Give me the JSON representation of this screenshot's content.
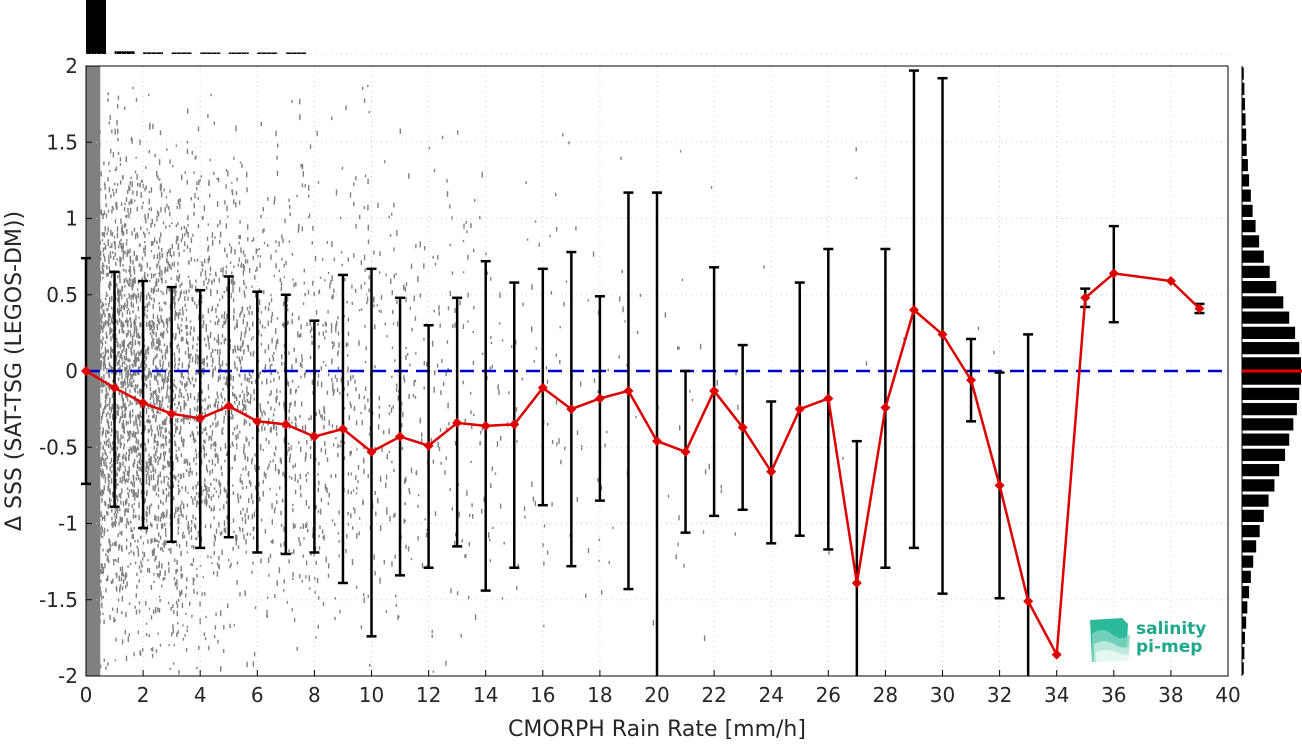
{
  "chart_data": {
    "type": "line",
    "xlabel": "CMORPH Rain Rate [mm/h]",
    "ylabel": "Δ SSS (SAT-TSG (LEGOS-DM))",
    "xlim": [
      0,
      40
    ],
    "ylim": [
      -2,
      2
    ],
    "x_ticks": [
      "0",
      "2",
      "4",
      "6",
      "8",
      "10",
      "12",
      "14",
      "16",
      "18",
      "20",
      "22",
      "24",
      "26",
      "28",
      "30",
      "32",
      "34",
      "36",
      "38",
      "40"
    ],
    "y_ticks": [
      "-2",
      "-1.5",
      "-1",
      "-0.5",
      "0",
      "0.5",
      "1",
      "1.5",
      "2"
    ],
    "grid": true,
    "zero_line": {
      "y": 0,
      "style": "dashed",
      "color": "#0000cc"
    },
    "scatter_color": "#808080",
    "series": [
      {
        "color": "#dd0000",
        "marker": "diamond",
        "x": [
          0,
          1,
          2,
          3,
          4,
          5,
          6,
          7,
          8,
          9,
          10,
          11,
          12,
          13,
          14,
          15,
          16,
          17,
          18,
          19,
          20,
          21,
          22,
          23,
          24,
          25,
          26,
          27,
          28,
          29,
          30,
          31,
          32,
          33,
          34,
          35,
          36,
          38,
          39
        ],
        "y": [
          0.0,
          -0.11,
          -0.21,
          -0.28,
          -0.31,
          -0.23,
          -0.33,
          -0.35,
          -0.43,
          -0.38,
          -0.53,
          -0.43,
          -0.49,
          -0.34,
          -0.36,
          -0.35,
          -0.11,
          -0.25,
          -0.18,
          -0.13,
          -0.46,
          -0.53,
          -0.13,
          -0.37,
          -0.66,
          -0.25,
          -0.18,
          -1.39,
          -0.24,
          0.4,
          0.24,
          -0.06,
          -0.75,
          -1.51,
          -1.86,
          0.48,
          0.64,
          0.59,
          0.41
        ],
        "err_low": [
          -0.74,
          -0.89,
          -1.03,
          -1.12,
          -1.16,
          -1.09,
          -1.19,
          -1.2,
          -1.19,
          -1.39,
          -1.74,
          -1.34,
          -1.29,
          -1.15,
          -1.44,
          -1.29,
          -0.88,
          -1.28,
          -0.85,
          -1.43,
          -2.0,
          -1.06,
          -0.95,
          -0.91,
          -1.13,
          -1.08,
          -1.17,
          -2.0,
          -1.29,
          -1.16,
          -1.46,
          -0.33,
          -1.49,
          -2.0,
          null,
          0.42,
          0.32,
          null,
          0.38
        ],
        "err_high": [
          0.74,
          0.65,
          0.59,
          0.55,
          0.53,
          0.62,
          0.52,
          0.5,
          0.33,
          0.63,
          0.67,
          0.48,
          0.3,
          0.48,
          0.72,
          0.58,
          0.67,
          0.78,
          0.49,
          1.17,
          1.17,
          0.0,
          0.68,
          0.17,
          -0.2,
          0.58,
          0.8,
          -0.46,
          0.8,
          1.97,
          1.92,
          0.21,
          -0.01,
          0.24,
          null,
          0.54,
          0.95,
          null,
          0.44
        ]
      }
    ],
    "top_histogram": {
      "x_bins": [
        0,
        1,
        2,
        3,
        4,
        5,
        6,
        7
      ],
      "heights": [
        1.0,
        0.05,
        0.03,
        0.015,
        0.01,
        0.006,
        0.004,
        0.002
      ]
    },
    "right_histogram": {
      "y_bins": [
        1.95,
        1.85,
        1.75,
        1.65,
        1.55,
        1.45,
        1.35,
        1.25,
        1.15,
        1.05,
        0.95,
        0.85,
        0.75,
        0.65,
        0.55,
        0.45,
        0.35,
        0.25,
        0.15,
        0.05,
        -0.05,
        -0.15,
        -0.25,
        -0.35,
        -0.45,
        -0.55,
        -0.65,
        -0.75,
        -0.85,
        -0.95,
        -1.05,
        -1.15,
        -1.25,
        -1.35,
        -1.45,
        -1.55,
        -1.65,
        -1.75,
        -1.85,
        -1.95
      ],
      "heights": [
        0.03,
        0.04,
        0.05,
        0.06,
        0.07,
        0.08,
        0.1,
        0.12,
        0.15,
        0.18,
        0.23,
        0.29,
        0.37,
        0.47,
        0.58,
        0.7,
        0.8,
        0.9,
        0.97,
        1.0,
        1.0,
        0.97,
        0.93,
        0.87,
        0.8,
        0.73,
        0.63,
        0.55,
        0.45,
        0.37,
        0.3,
        0.24,
        0.19,
        0.15,
        0.12,
        0.09,
        0.07,
        0.05,
        0.04,
        0.03
      ],
      "median_line": {
        "y": 0,
        "color": "#dd0000"
      }
    }
  },
  "logo": {
    "line1": "salinity",
    "line2": "pi-mep",
    "color": "#1fa88a"
  }
}
